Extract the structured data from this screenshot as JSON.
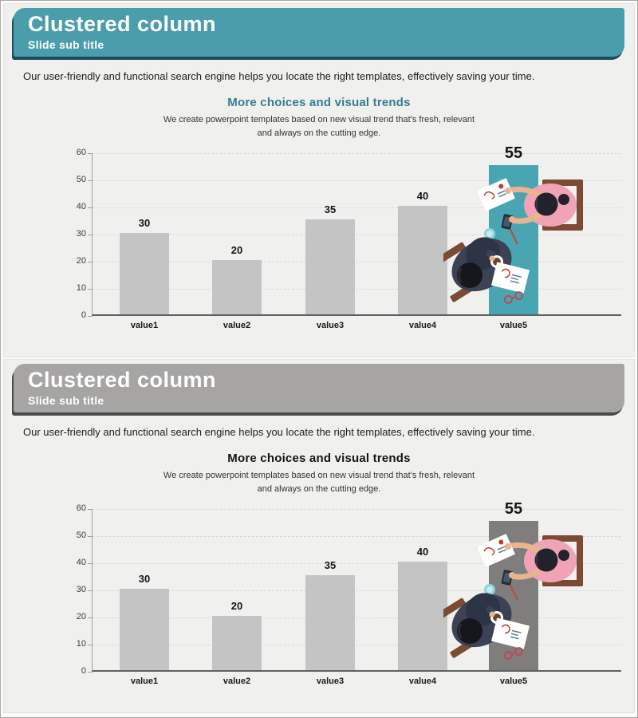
{
  "slides": [
    {
      "title": "Clustered column",
      "subtitle": "Slide sub title",
      "description": "Our user-friendly and functional search engine helps you locate the right templates, effectively saving your time.",
      "chart_heading": "More choices and visual trends",
      "chart_subtext": "We create powerpoint templates based on new visual trend that's fresh, relevant\nand always on the cutting edge.",
      "accent": "#4c9dab",
      "accent_shadow": "#1a4e5c",
      "heading_color": "#357d91",
      "highlight_bar_color": "#4aa5b2"
    },
    {
      "title": "Clustered column",
      "subtitle": "Slide sub title",
      "description": "Our user-friendly and functional search engine helps you locate the right templates, effectively saving your time.",
      "chart_heading": "More choices and visual trends",
      "chart_subtext": "We create powerpoint templates based on new visual trend that's fresh, relevant\nand always on the cutting edge.",
      "accent": "#a6a5a4",
      "accent_shadow": "#4a4a4a",
      "heading_color": "#141414",
      "highlight_bar_color": "#7f7e7d"
    }
  ],
  "chart_data": {
    "type": "bar",
    "title": "More choices and visual trends",
    "categories": [
      "value1",
      "value2",
      "value3",
      "value4",
      "value5"
    ],
    "values": [
      30,
      20,
      35,
      40,
      55
    ],
    "highlight_index": 4,
    "xlabel": "",
    "ylabel": "",
    "ylim": [
      0,
      60
    ],
    "ytick_step": 10,
    "grid": true,
    "legend": false,
    "bar_color": "#c4c4c4",
    "gridline_color": "#d9d9d9"
  }
}
